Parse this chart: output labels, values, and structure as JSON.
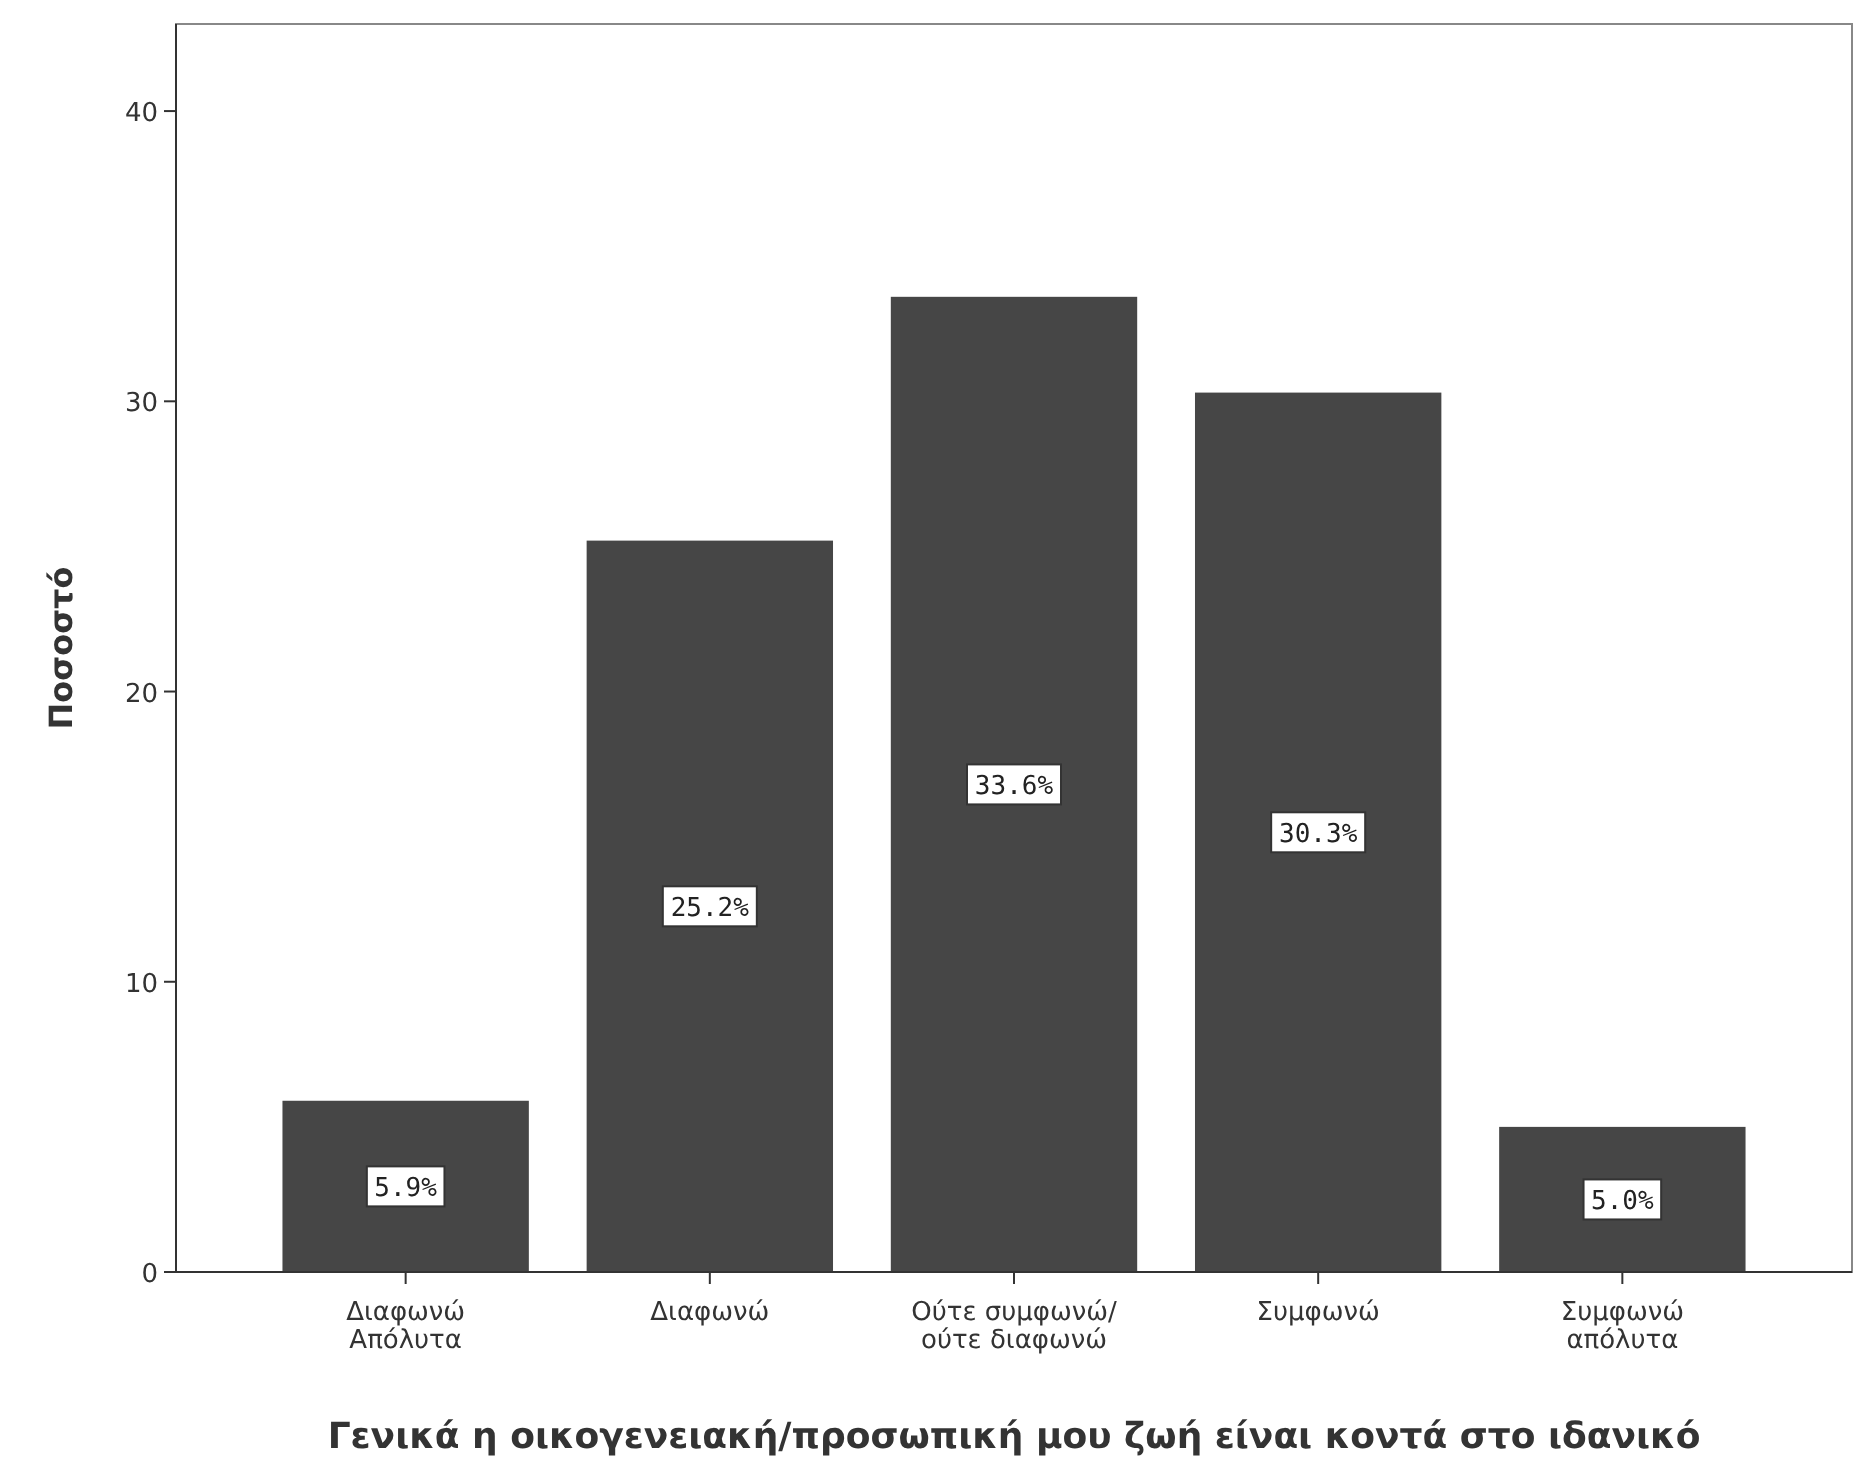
{
  "chart_data": {
    "type": "bar",
    "xlabel": "Γενικά η οικογενειακή/προσωπική μου ζωή είναι κοντά στο ιδανικό",
    "ylabel": "Ποσοστό",
    "categories": [
      "Διαφωνώ\nΑπόλυτα",
      "Διαφωνώ",
      "Ούτε συμφωνώ/\nούτε διαφωνώ",
      "Συμφωνώ",
      "Συμφωνώ\nαπόλυτα"
    ],
    "values": [
      5.9,
      25.2,
      33.6,
      30.3,
      5.0
    ],
    "value_labels": [
      "5.9%",
      "25.2%",
      "33.6%",
      "30.3%",
      "5.0%"
    ],
    "color": "#464646",
    "ylim": [
      0,
      43
    ],
    "yticks": [
      0,
      10,
      20,
      30,
      40
    ],
    "grid": false
  }
}
